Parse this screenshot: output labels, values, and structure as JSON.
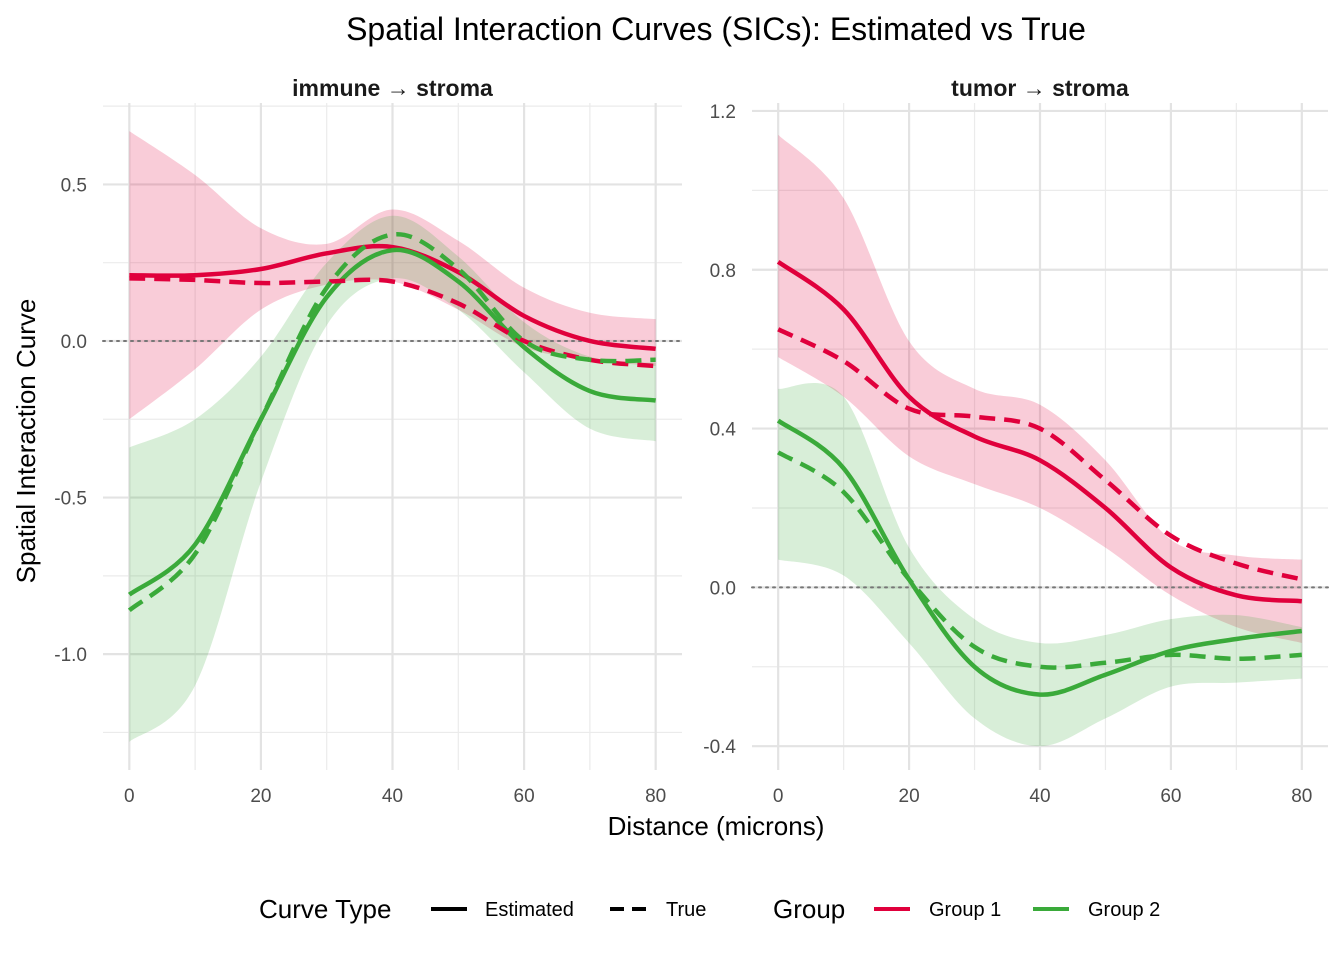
{
  "chart_data": {
    "type": "line",
    "title": "Spatial Interaction Curves (SICs): Estimated vs True",
    "xlabel": "Distance (microns)",
    "ylabel": "Spatial Interaction Curve",
    "colors": {
      "group1": "#E0003C",
      "group2": "#3AAA3A",
      "zero_line": "#777777"
    },
    "legend": {
      "position": "bottom",
      "curve_type_title": "Curve Type",
      "curve_types": [
        {
          "label": "Estimated",
          "linestyle": "solid"
        },
        {
          "label": "True",
          "linestyle": "dashed"
        }
      ],
      "group_title": "Group",
      "groups": [
        {
          "label": "Group 1",
          "color": "#E0003C"
        },
        {
          "label": "Group 2",
          "color": "#3AAA3A"
        }
      ]
    },
    "panels": [
      {
        "strip": "immune → stroma",
        "xlim": [
          -4,
          84
        ],
        "ylim": [
          -1.37,
          0.76
        ],
        "xticks": [
          0,
          20,
          40,
          60,
          80
        ],
        "xtick_labels": [
          "0",
          "20",
          "40",
          "60",
          "80"
        ],
        "yticks": [
          0.5,
          0.0,
          -0.5,
          -1.0
        ],
        "ytick_labels": [
          "0.5",
          "0.0",
          "-0.5",
          "-1.0"
        ],
        "series": [
          {
            "group": "Group 1",
            "type": "Estimated",
            "x": [
              0,
              10,
              20,
              30,
              40,
              50,
              60,
              70,
              80
            ],
            "y": [
              0.21,
              0.21,
              0.23,
              0.28,
              0.3,
              0.22,
              0.08,
              0.0,
              -0.025
            ],
            "ci_lower": [
              -0.25,
              -0.09,
              0.1,
              0.18,
              0.19,
              0.1,
              -0.02,
              -0.06,
              -0.08
            ],
            "ci_upper": [
              0.67,
              0.53,
              0.36,
              0.31,
              0.42,
              0.32,
              0.17,
              0.09,
              0.07
            ]
          },
          {
            "group": "Group 2",
            "type": "Estimated",
            "x": [
              0,
              10,
              20,
              30,
              40,
              50,
              60,
              70,
              80
            ],
            "y": [
              -0.81,
              -0.65,
              -0.25,
              0.14,
              0.29,
              0.19,
              -0.02,
              -0.16,
              -0.19
            ],
            "ci_lower": [
              -1.28,
              -1.1,
              -0.45,
              0.05,
              0.2,
              0.1,
              -0.1,
              -0.28,
              -0.32
            ],
            "ci_upper": [
              -0.34,
              -0.25,
              -0.05,
              0.25,
              0.4,
              0.27,
              0.06,
              -0.05,
              -0.07
            ]
          },
          {
            "group": "Group 1",
            "type": "True",
            "x": [
              0,
              10,
              20,
              30,
              40,
              50,
              60,
              70,
              80
            ],
            "y": [
              0.2,
              0.195,
              0.185,
              0.19,
              0.19,
              0.12,
              0.0,
              -0.06,
              -0.08
            ]
          },
          {
            "group": "Group 2",
            "type": "True",
            "x": [
              0,
              10,
              20,
              30,
              40,
              50,
              60,
              70,
              80
            ],
            "y": [
              -0.86,
              -0.68,
              -0.25,
              0.17,
              0.34,
              0.23,
              0.0,
              -0.06,
              -0.06
            ]
          }
        ]
      },
      {
        "strip": "tumor → stroma",
        "xlim": [
          -4,
          84
        ],
        "ylim": [
          -0.46,
          1.22
        ],
        "xticks": [
          0,
          20,
          40,
          60,
          80
        ],
        "xtick_labels": [
          "0",
          "20",
          "40",
          "60",
          "80"
        ],
        "yticks": [
          1.2,
          0.8,
          0.4,
          0.0,
          -0.4
        ],
        "ytick_labels": [
          "1.2",
          "0.8",
          "0.4",
          "0.0",
          "-0.4"
        ],
        "series": [
          {
            "group": "Group 1",
            "type": "Estimated",
            "x": [
              0,
              10,
              20,
              30,
              40,
              50,
              60,
              70,
              80
            ],
            "y": [
              0.82,
              0.7,
              0.48,
              0.38,
              0.32,
              0.2,
              0.05,
              -0.02,
              -0.035
            ],
            "ci_lower": [
              0.58,
              0.48,
              0.33,
              0.26,
              0.2,
              0.1,
              -0.02,
              -0.1,
              -0.14
            ],
            "ci_upper": [
              1.14,
              0.98,
              0.62,
              0.5,
              0.46,
              0.32,
              0.12,
              0.08,
              0.07
            ]
          },
          {
            "group": "Group 2",
            "type": "Estimated",
            "x": [
              0,
              10,
              20,
              30,
              40,
              50,
              60,
              70,
              80
            ],
            "y": [
              0.42,
              0.3,
              0.02,
              -0.2,
              -0.27,
              -0.22,
              -0.16,
              -0.13,
              -0.11
            ],
            "ci_lower": [
              0.07,
              0.03,
              -0.14,
              -0.33,
              -0.4,
              -0.33,
              -0.25,
              -0.24,
              -0.23
            ],
            "ci_upper": [
              0.5,
              0.48,
              0.1,
              -0.08,
              -0.14,
              -0.12,
              -0.08,
              -0.07,
              -0.1
            ]
          },
          {
            "group": "Group 1",
            "type": "True",
            "x": [
              0,
              10,
              20,
              30,
              40,
              50,
              60,
              70,
              80
            ],
            "y": [
              0.65,
              0.57,
              0.45,
              0.43,
              0.4,
              0.27,
              0.13,
              0.06,
              0.02
            ]
          },
          {
            "group": "Group 2",
            "type": "True",
            "x": [
              0,
              10,
              20,
              30,
              40,
              50,
              60,
              70,
              80
            ],
            "y": [
              0.34,
              0.24,
              0.02,
              -0.15,
              -0.2,
              -0.19,
              -0.17,
              -0.18,
              -0.17
            ]
          }
        ]
      }
    ]
  }
}
